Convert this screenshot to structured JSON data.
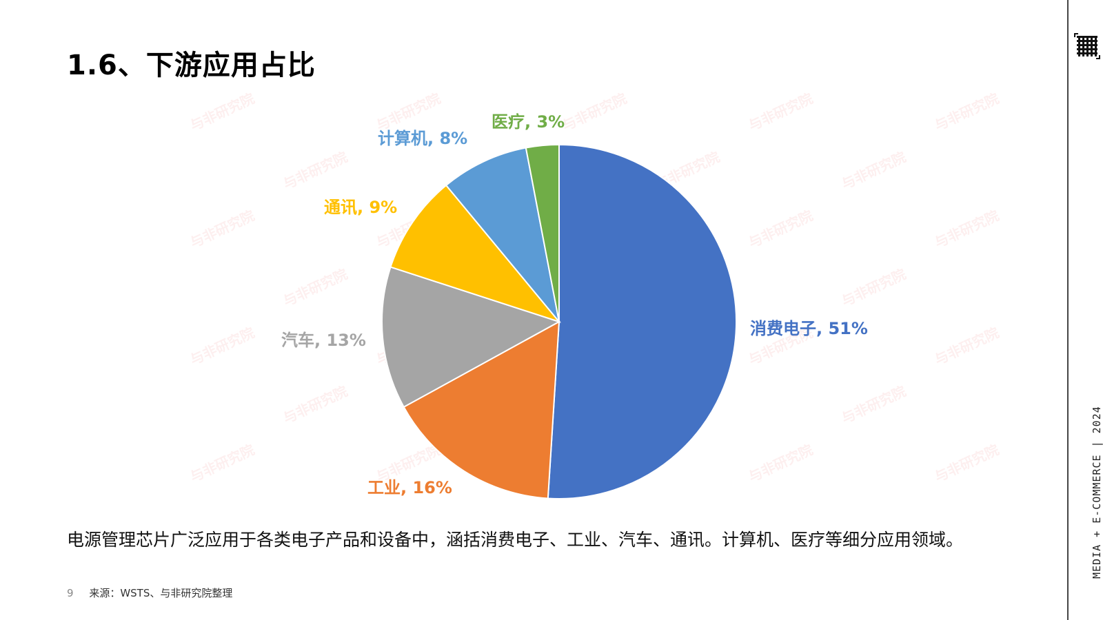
{
  "slide": {
    "title": "1.6、下游应用占比",
    "description": "电源管理芯片广泛应用于各类电子产品和设备中，涵括消费电子、工业、汽车、通讯。计算机、医疗等细分应用领域。",
    "page_number": "9",
    "source": "来源：WSTS、与非研究院整理",
    "side_text": "MEDIA + E-COMMERCE | 2024",
    "watermark_text": "与非研究院"
  },
  "chart_data": {
    "type": "pie",
    "title": "",
    "slices": [
      {
        "label": "消费电子, 51%",
        "name": "消费电子",
        "value": 51,
        "color": "#4472C4"
      },
      {
        "label": "工业, 16%",
        "name": "工业",
        "value": 16,
        "color": "#ED7D31"
      },
      {
        "label": "汽车, 13%",
        "name": "汽车",
        "value": 13,
        "color": "#A5A5A5"
      },
      {
        "label": "通讯, 9%",
        "name": "通讯",
        "value": 9,
        "color": "#FFC000"
      },
      {
        "label": "计算机, 8%",
        "name": "计算机",
        "value": 8,
        "color": "#5B9BD5"
      },
      {
        "label": "医疗, 3%",
        "name": "医疗",
        "value": 3,
        "color": "#70AD47"
      }
    ],
    "start": "12 o'clock",
    "direction": "clockwise"
  }
}
